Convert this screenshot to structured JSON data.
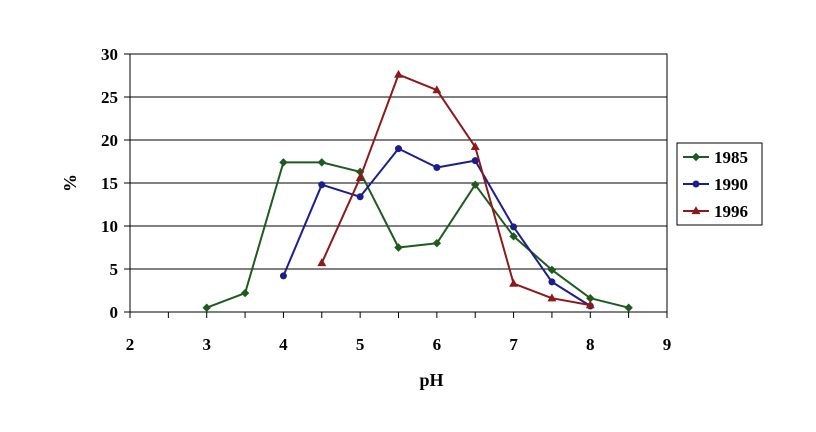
{
  "chart_data": {
    "type": "line",
    "title": "",
    "xlabel": "pH",
    "ylabel": "%",
    "xlim": [
      2,
      9
    ],
    "ylim": [
      0,
      30
    ],
    "x_ticks": [
      "2",
      "3",
      "4",
      "5",
      "6",
      "7",
      "8",
      "9"
    ],
    "y_ticks": [
      "0",
      "5",
      "10",
      "15",
      "20",
      "25",
      "30"
    ],
    "grid": "horizontal",
    "legend_position": "right",
    "series": [
      {
        "name": "1985",
        "color": "#1f5a1f",
        "marker": "diamond",
        "points": [
          [
            3,
            0.5
          ],
          [
            3.5,
            2.2
          ],
          [
            4,
            17.4
          ],
          [
            4.5,
            17.4
          ],
          [
            5,
            16.3
          ],
          [
            5.5,
            7.5
          ],
          [
            6,
            8.0
          ],
          [
            6.5,
            14.8
          ],
          [
            7,
            8.8
          ],
          [
            7.5,
            4.9
          ],
          [
            8,
            1.6
          ],
          [
            8.5,
            0.5
          ]
        ]
      },
      {
        "name": "1990",
        "color": "#1a1f8c",
        "marker": "circle",
        "points": [
          [
            4,
            4.2
          ],
          [
            4.5,
            14.8
          ],
          [
            5,
            13.4
          ],
          [
            5.5,
            19.0
          ],
          [
            6,
            16.8
          ],
          [
            6.5,
            17.6
          ],
          [
            7,
            9.9
          ],
          [
            7.5,
            3.5
          ],
          [
            8,
            0.7
          ]
        ]
      },
      {
        "name": "1996",
        "color": "#8b1a1a",
        "marker": "triangle",
        "points": [
          [
            4.5,
            5.7
          ],
          [
            5,
            15.6
          ],
          [
            5.5,
            27.6
          ],
          [
            6,
            25.8
          ],
          [
            6.5,
            19.2
          ],
          [
            7,
            3.3
          ],
          [
            7.5,
            1.6
          ],
          [
            8,
            0.8
          ]
        ]
      }
    ]
  }
}
